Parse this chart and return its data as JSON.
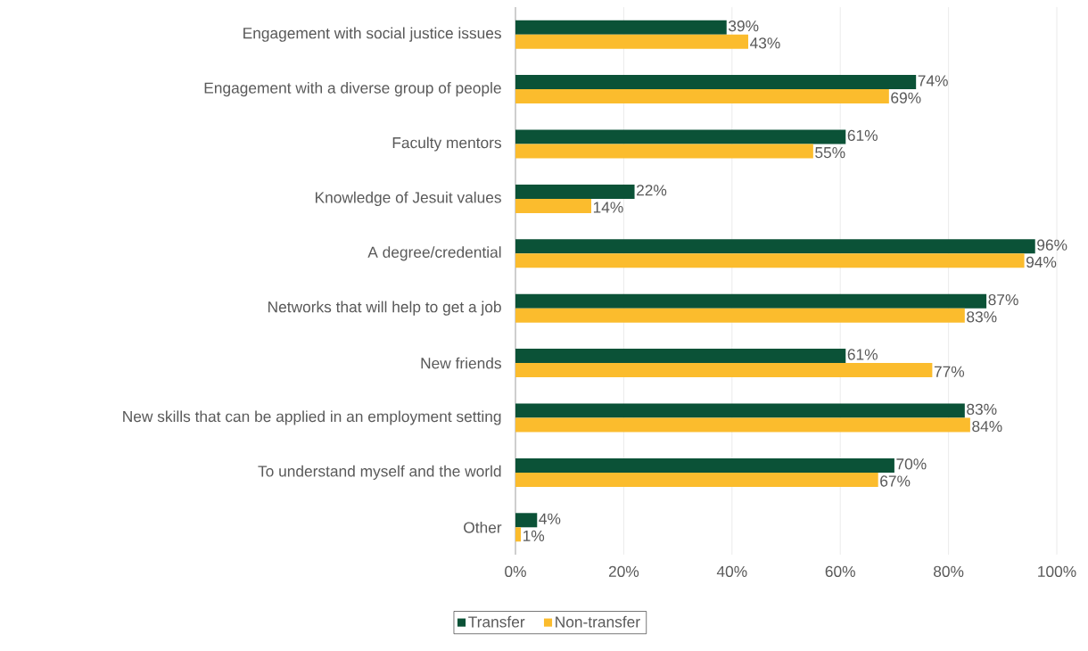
{
  "chart_data": {
    "type": "bar",
    "orientation": "horizontal",
    "categories": [
      "Engagement with social justice issues",
      "Engagement with a diverse group of people",
      "Faculty mentors",
      "Knowledge of Jesuit values",
      "A degree/credential",
      "Networks that will help to get a job",
      "New friends",
      "New skills that can be applied in an employment setting",
      "To understand myself and the world",
      "Other"
    ],
    "series": [
      {
        "name": "Transfer",
        "color": "#0b5237",
        "values": [
          39,
          74,
          61,
          22,
          96,
          87,
          61,
          83,
          70,
          4
        ],
        "value_labels": [
          "39%",
          "74%",
          "61%",
          "22%",
          "96%",
          "87%",
          "61%",
          "83%",
          "70%",
          "4%"
        ]
      },
      {
        "name": "Non-transfer",
        "color": "#fbbc2d",
        "values": [
          43,
          69,
          55,
          14,
          94,
          83,
          77,
          84,
          67,
          1
        ],
        "value_labels": [
          "43%",
          "69%",
          "55%",
          "14%",
          "94%",
          "83%",
          "77%",
          "84%",
          "67%",
          "1%"
        ]
      }
    ],
    "xlim": [
      0,
      100
    ],
    "xticks": [
      {
        "value": 0,
        "label": "0%"
      },
      {
        "value": 20,
        "label": "20%"
      },
      {
        "value": 40,
        "label": "40%"
      },
      {
        "value": 60,
        "label": "60%"
      },
      {
        "value": 80,
        "label": "80%"
      },
      {
        "value": 100,
        "label": "100%"
      }
    ],
    "grid": "x",
    "legend": "bottom"
  }
}
